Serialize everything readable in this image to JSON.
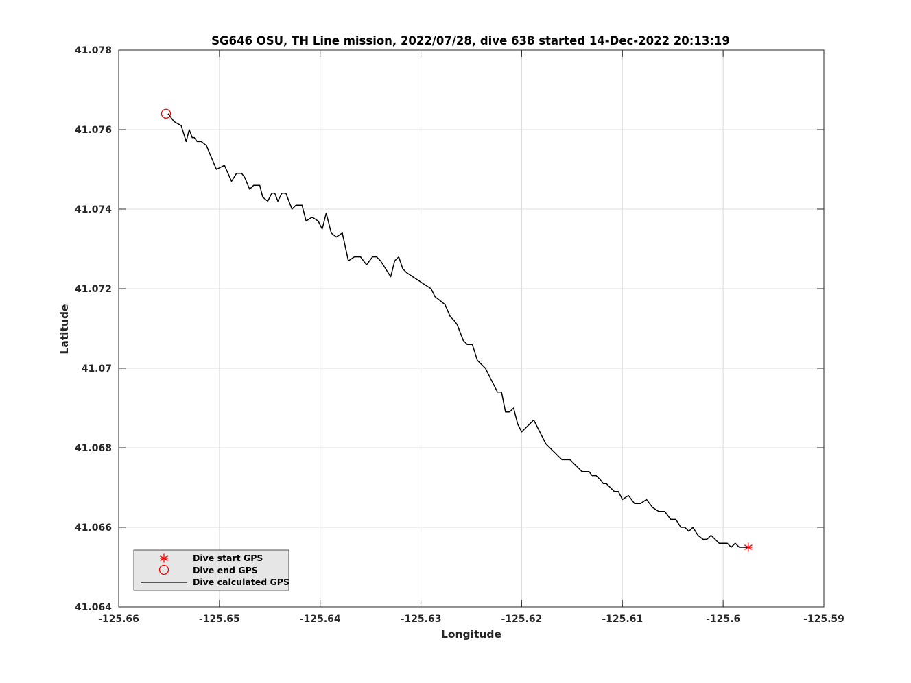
{
  "chart_data": {
    "type": "line",
    "title": "SG646 OSU, TH Line mission, 2022/07/28, dive 638 started 14-Dec-2022 20:13:19",
    "xlabel": "Longitude",
    "ylabel": "Latitude",
    "xlim": [
      -125.66,
      -125.59
    ],
    "ylim": [
      41.064,
      41.078
    ],
    "xticks": [
      -125.66,
      -125.65,
      -125.64,
      -125.63,
      -125.62,
      -125.61,
      -125.6,
      -125.59
    ],
    "yticks": [
      41.064,
      41.066,
      41.068,
      41.07,
      41.072,
      41.074,
      41.076,
      41.078
    ],
    "xtick_labels": [
      "-125.66",
      "-125.65",
      "-125.64",
      "-125.63",
      "-125.62",
      "-125.61",
      "-125.6",
      "-125.59"
    ],
    "ytick_labels": [
      "41.064",
      "41.066",
      "41.068",
      "41.07",
      "41.072",
      "41.074",
      "41.076",
      "41.078"
    ],
    "grid": true,
    "legend_position": "bottom-left",
    "series": [
      {
        "name": "Dive start GPS",
        "marker": "asterisk",
        "color": "#ff0000",
        "x": [
          -125.5975
        ],
        "y": [
          41.0655
        ]
      },
      {
        "name": "Dive end GPS",
        "marker": "circle",
        "color": "#ff0000",
        "x": [
          -125.6553
        ],
        "y": [
          41.0764
        ]
      },
      {
        "name": "Dive calculated GPS",
        "marker": "line",
        "color": "#000000",
        "x": [
          -125.6551,
          -125.6545,
          -125.6538,
          -125.6533,
          -125.6532,
          -125.653,
          -125.6527,
          -125.6525,
          -125.6522,
          -125.6518,
          -125.6513,
          -125.6508,
          -125.6503,
          -125.6495,
          -125.6488,
          -125.6483,
          -125.6478,
          -125.6475,
          -125.647,
          -125.6466,
          -125.646,
          -125.6457,
          -125.6452,
          -125.6448,
          -125.6445,
          -125.6442,
          -125.6438,
          -125.6434,
          -125.6428,
          -125.6424,
          -125.6418,
          -125.6414,
          -125.6408,
          -125.6402,
          -125.6398,
          -125.6394,
          -125.6389,
          -125.6384,
          -125.6378,
          -125.6372,
          -125.6366,
          -125.636,
          -125.6354,
          -125.6348,
          -125.6344,
          -125.634,
          -125.6335,
          -125.633,
          -125.6326,
          -125.6322,
          -125.6318,
          -125.6314,
          -125.6308,
          -125.6302,
          -125.6296,
          -125.629,
          -125.6286,
          -125.6281,
          -125.6276,
          -125.6271,
          -125.6267,
          -125.6264,
          -125.6261,
          -125.6258,
          -125.6254,
          -125.6249,
          -125.6244,
          -125.624,
          -125.6236,
          -125.6232,
          -125.6228,
          -125.6224,
          -125.622,
          -125.6216,
          -125.6212,
          -125.6208,
          -125.6204,
          -125.62,
          -125.6196,
          -125.6192,
          -125.6188,
          -125.6184,
          -125.618,
          -125.6176,
          -125.6172,
          -125.6168,
          -125.6164,
          -125.616,
          -125.6156,
          -125.6152,
          -125.6148,
          -125.6144,
          -125.614,
          -125.6136,
          -125.6133,
          -125.613,
          -125.6126,
          -125.6122,
          -125.6119,
          -125.6116,
          -125.6112,
          -125.6108,
          -125.6104,
          -125.61,
          -125.6094,
          -125.6088,
          -125.6082,
          -125.6076,
          -125.607,
          -125.6064,
          -125.6058,
          -125.6052,
          -125.6047,
          -125.6042,
          -125.6038,
          -125.6034,
          -125.603,
          -125.6025,
          -125.602,
          -125.6016,
          -125.6012,
          -125.6008,
          -125.6004,
          -125.6,
          -125.5996,
          -125.5992,
          -125.5988,
          -125.5984,
          -125.598,
          -125.5976
        ],
        "y": [
          41.0764,
          41.0762,
          41.0761,
          41.0757,
          41.0758,
          41.076,
          41.0758,
          41.0758,
          41.0757,
          41.0757,
          41.0756,
          41.0753,
          41.075,
          41.0751,
          41.0747,
          41.0749,
          41.0749,
          41.0748,
          41.0745,
          41.0746,
          41.0746,
          41.0743,
          41.0742,
          41.0744,
          41.0744,
          41.0742,
          41.0744,
          41.0744,
          41.074,
          41.0741,
          41.0741,
          41.0737,
          41.0738,
          41.0737,
          41.0735,
          41.0739,
          41.0734,
          41.0733,
          41.0734,
          41.0727,
          41.0728,
          41.0728,
          41.0726,
          41.0728,
          41.0728,
          41.0727,
          41.0725,
          41.0723,
          41.0727,
          41.0728,
          41.0725,
          41.0724,
          41.0723,
          41.0722,
          41.0721,
          41.072,
          41.0718,
          41.0717,
          41.0716,
          41.0713,
          41.0712,
          41.0711,
          41.0709,
          41.0707,
          41.0706,
          41.0706,
          41.0702,
          41.0701,
          41.07,
          41.0698,
          41.0696,
          41.0694,
          41.0694,
          41.0689,
          41.0689,
          41.069,
          41.0686,
          41.0684,
          41.0685,
          41.0686,
          41.0687,
          41.0685,
          41.0683,
          41.0681,
          41.068,
          41.0679,
          41.0678,
          41.0677,
          41.0677,
          41.0677,
          41.0676,
          41.0675,
          41.0674,
          41.0674,
          41.0674,
          41.0673,
          41.0673,
          41.0672,
          41.0671,
          41.0671,
          41.067,
          41.0669,
          41.0669,
          41.0667,
          41.0668,
          41.0666,
          41.0666,
          41.0667,
          41.0665,
          41.0664,
          41.0664,
          41.0662,
          41.0662,
          41.066,
          41.066,
          41.0659,
          41.066,
          41.0658,
          41.0657,
          41.0657,
          41.0658,
          41.0657,
          41.0656,
          41.0656,
          41.0656,
          41.0655,
          41.0656,
          41.0655,
          41.0655,
          41.0655
        ]
      }
    ]
  }
}
